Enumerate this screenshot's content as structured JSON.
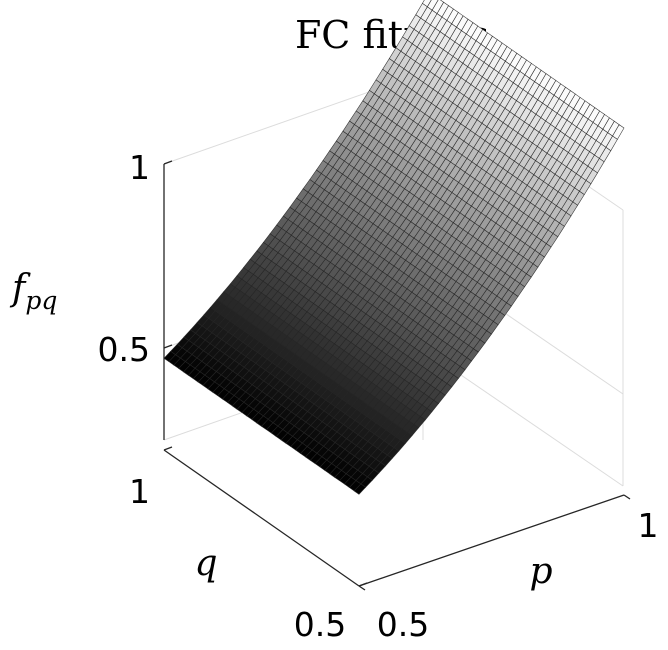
{
  "chart_data": {
    "type": "surface",
    "title": "FC fitness",
    "zlabel": {
      "base": "f",
      "subscript": "pq"
    },
    "xlabel": "p",
    "ylabel": "q",
    "xlim": [
      0.5,
      1
    ],
    "ylim": [
      0.5,
      1
    ],
    "zlim": [
      0,
      1
    ],
    "x_ticks": [
      "0.5",
      "1"
    ],
    "y_ticks": [
      "0.5",
      "1"
    ],
    "z_ticks": [
      "0.5",
      "1"
    ],
    "colormap": "gray",
    "grid": true,
    "mesh_resolution": 40,
    "surface_samples": [
      {
        "p": 0.5,
        "q": 0.5,
        "f": 0.25
      },
      {
        "p": 0.5,
        "q": 1.0,
        "f": 0.25
      },
      {
        "p": 0.75,
        "q": 0.75,
        "f": 0.5625
      },
      {
        "p": 1.0,
        "q": 0.5,
        "f": 1.0
      },
      {
        "p": 1.0,
        "q": 1.0,
        "f": 1.0
      }
    ]
  }
}
